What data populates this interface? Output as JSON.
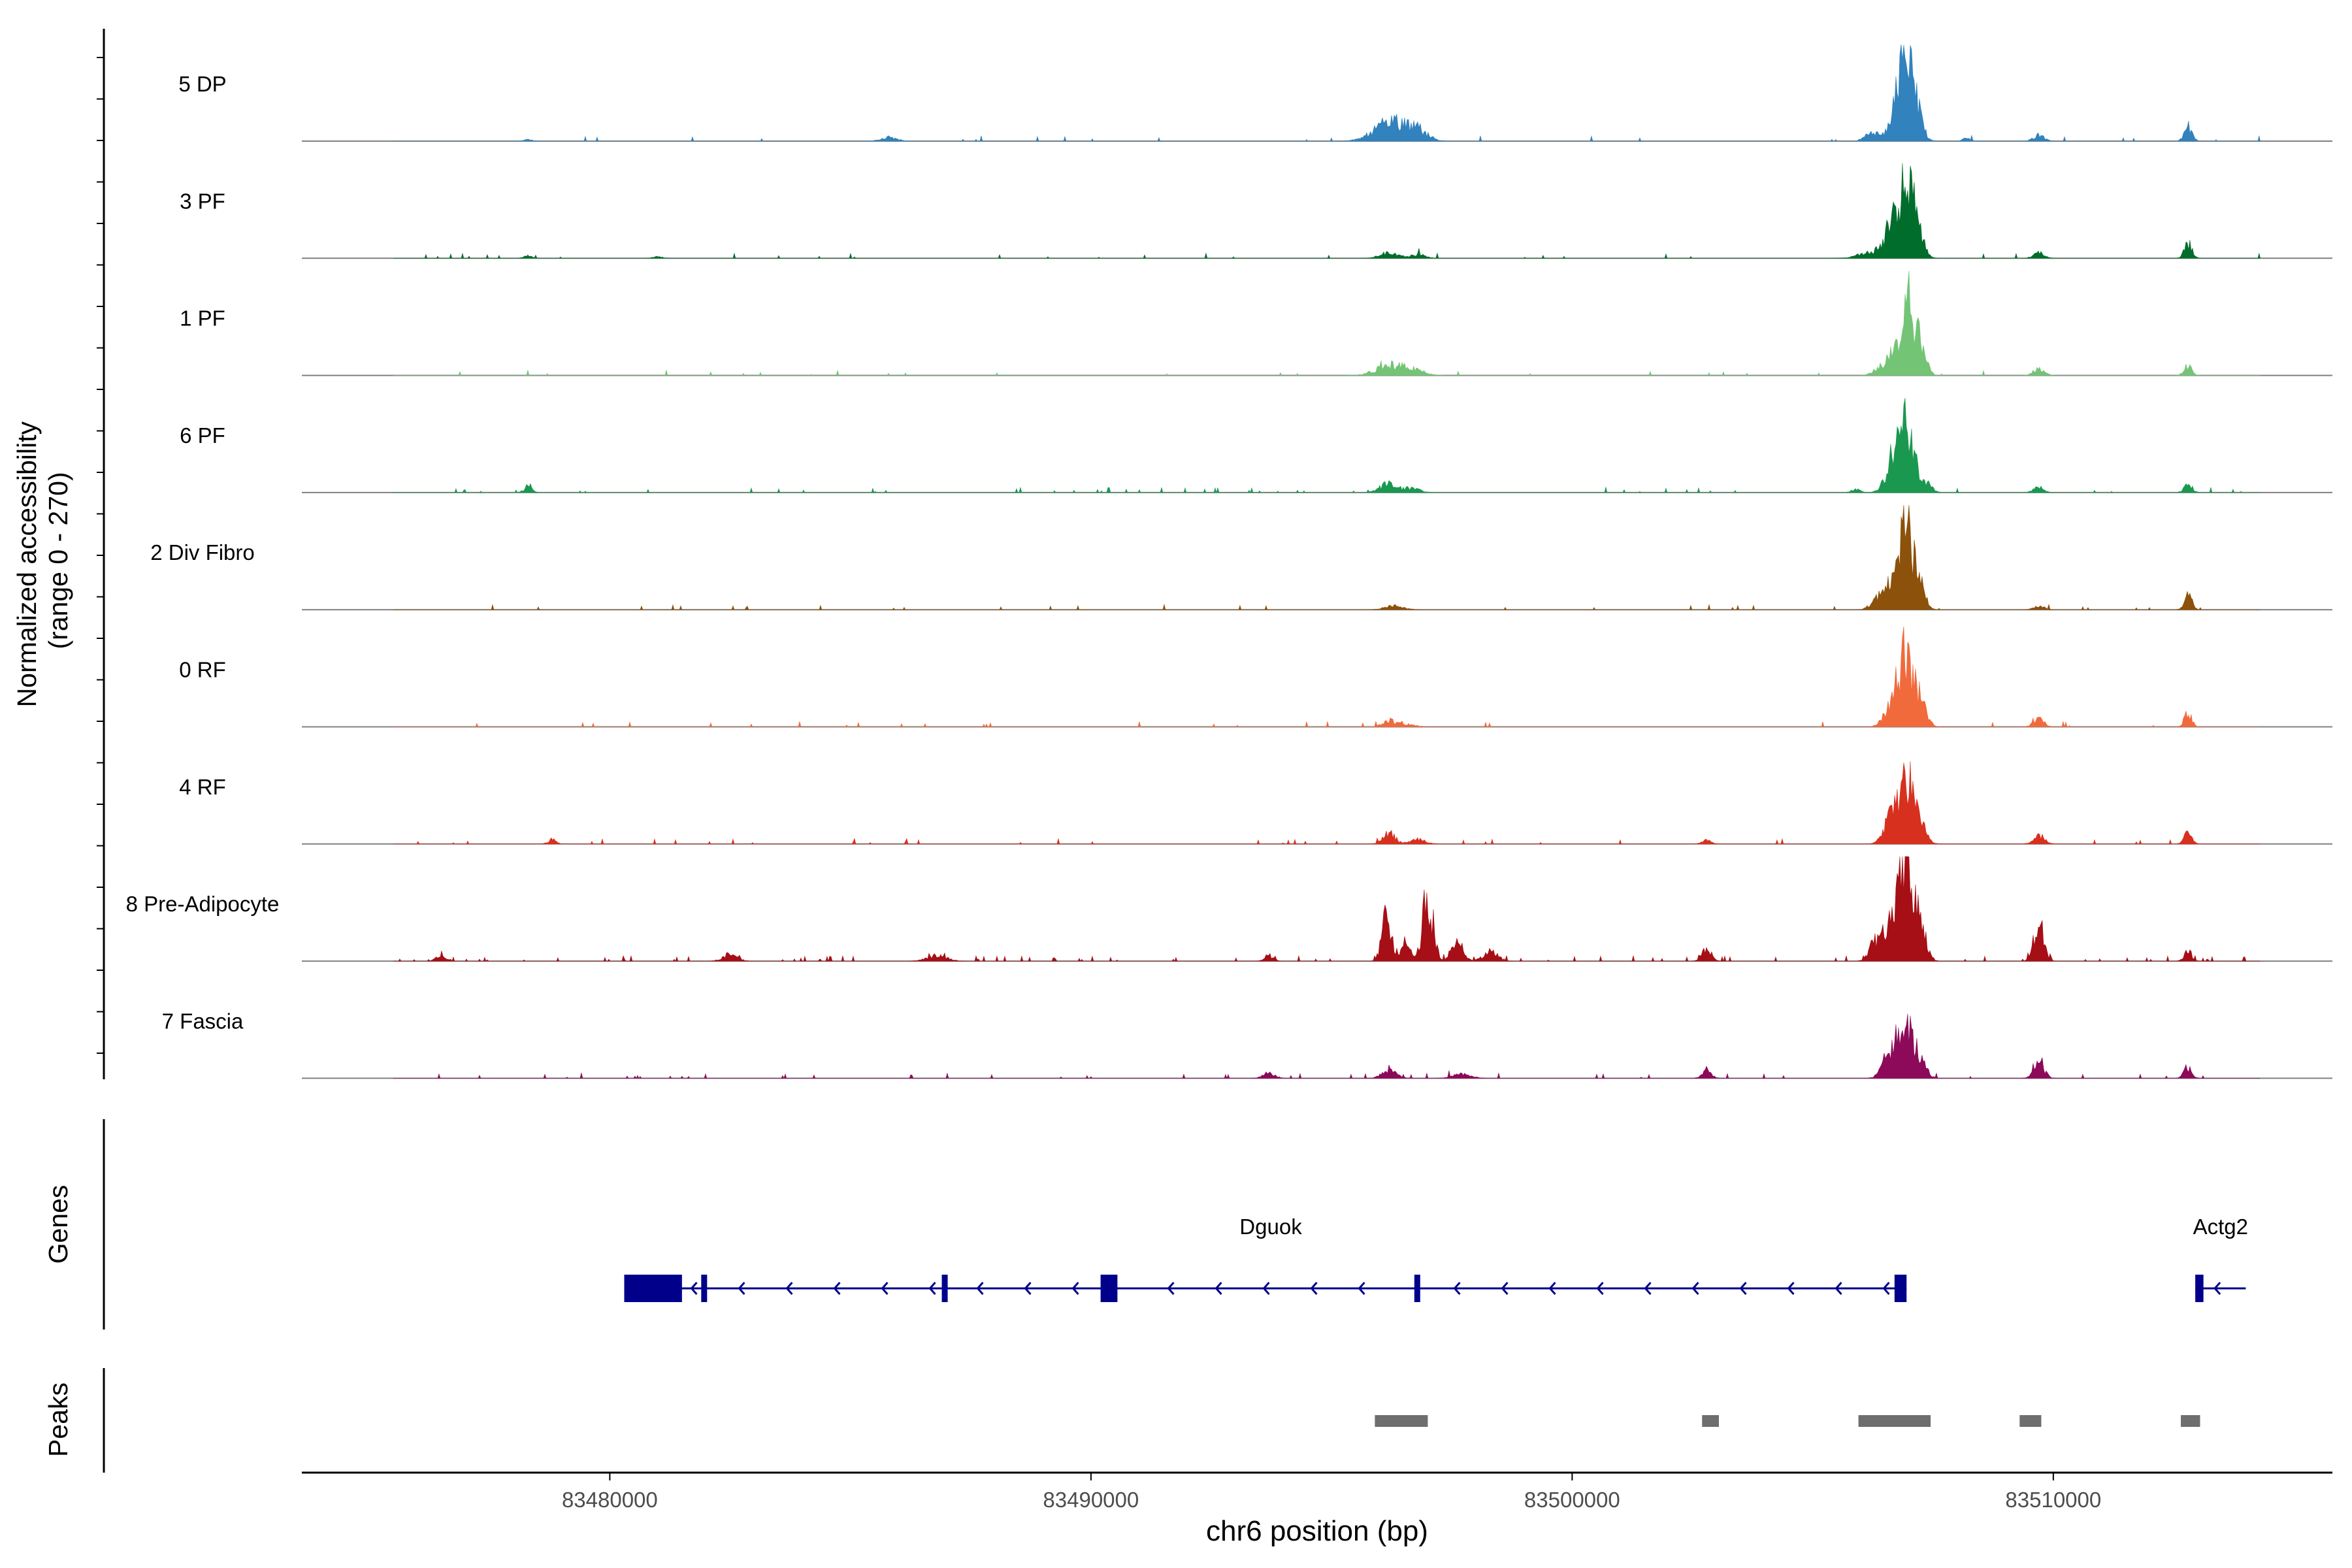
{
  "chart_data": {
    "type": "area",
    "title": "",
    "ylabel": [
      "Normalized accessibility",
      "(range 0 - 270)"
    ],
    "xlabel": "chr6 position (bp)",
    "xlim": [
      83473600,
      83515800
    ],
    "ylim": [
      0,
      270
    ],
    "x_ticks": [
      83480000,
      83490000,
      83500000,
      83510000
    ],
    "x_tick_labels": [
      "83480000",
      "83490000",
      "83500000",
      "83510000"
    ],
    "grid": false,
    "track_range": [
      83475500,
      83514300
    ],
    "tracks": [
      {
        "name": "5 DP",
        "color": "#3182bd",
        "peaks": [
          [
            83478300,
            4,
            80
          ],
          [
            83485800,
            12,
            150
          ],
          [
            83496250,
            52,
            350
          ],
          [
            83496800,
            22,
            200
          ],
          [
            83506200,
            20,
            130
          ],
          [
            83506700,
            50,
            180
          ],
          [
            83506950,
            190,
            160
          ],
          [
            83507200,
            40,
            120
          ],
          [
            83508200,
            8,
            80
          ],
          [
            83509700,
            16,
            110
          ],
          [
            83512800,
            40,
            80
          ]
        ],
        "noise": 0.015
      },
      {
        "name": "3 PF",
        "color": "#006d2c",
        "peaks": [
          [
            83478300,
            8,
            80
          ],
          [
            83481000,
            4,
            100
          ],
          [
            83496200,
            15,
            180
          ],
          [
            83496800,
            10,
            150
          ],
          [
            83506200,
            15,
            250
          ],
          [
            83506650,
            75,
            160
          ],
          [
            83506950,
            180,
            170
          ],
          [
            83507200,
            40,
            120
          ],
          [
            83509700,
            14,
            110
          ],
          [
            83512800,
            40,
            80
          ]
        ],
        "noise": 0.025
      },
      {
        "name": "1 PF",
        "color": "#74c476",
        "peaks": [
          [
            83496250,
            28,
            300
          ],
          [
            83496750,
            12,
            200
          ],
          [
            83506350,
            12,
            130
          ],
          [
            83506650,
            55,
            150
          ],
          [
            83506980,
            200,
            130
          ],
          [
            83507250,
            70,
            110
          ],
          [
            83509700,
            18,
            110
          ],
          [
            83512800,
            25,
            80
          ]
        ],
        "noise": 0.02
      },
      {
        "name": "6 PF",
        "color": "#1a9850",
        "peaks": [
          [
            83478300,
            16,
            80
          ],
          [
            83496200,
            25,
            180
          ],
          [
            83496700,
            10,
            150
          ],
          [
            83505900,
            8,
            100
          ],
          [
            83506700,
            90,
            160
          ],
          [
            83506980,
            155,
            160
          ],
          [
            83507400,
            20,
            100
          ],
          [
            83509700,
            14,
            110
          ],
          [
            83512800,
            25,
            80
          ]
        ],
        "noise": 0.04
      },
      {
        "name": "2 Div Fibro",
        "color": "#8c510a",
        "peaks": [
          [
            83496300,
            10,
            200
          ],
          [
            83506300,
            20,
            120
          ],
          [
            83506650,
            90,
            160
          ],
          [
            83506950,
            220,
            140
          ],
          [
            83507250,
            50,
            110
          ],
          [
            83509700,
            10,
            110
          ],
          [
            83512800,
            40,
            80
          ]
        ],
        "noise": 0.03
      },
      {
        "name": "0 RF",
        "color": "#f16a3c",
        "peaks": [
          [
            83496200,
            18,
            130
          ],
          [
            83496600,
            8,
            150
          ],
          [
            83506650,
            70,
            150
          ],
          [
            83506950,
            185,
            140
          ],
          [
            83507250,
            70,
            120
          ],
          [
            83509700,
            20,
            110
          ],
          [
            83512800,
            35,
            80
          ]
        ],
        "noise": 0.025
      },
      {
        "name": "4 RF",
        "color": "#d7301f",
        "peaks": [
          [
            83478800,
            12,
            80
          ],
          [
            83496200,
            28,
            130
          ],
          [
            83496800,
            12,
            150
          ],
          [
            83502800,
            12,
            90
          ],
          [
            83506650,
            80,
            150
          ],
          [
            83506950,
            175,
            140
          ],
          [
            83507250,
            60,
            120
          ],
          [
            83509700,
            25,
            110
          ],
          [
            83512800,
            28,
            80
          ]
        ],
        "noise": 0.03
      },
      {
        "name": "8 Pre-Adipocyte",
        "color": "#a50f15",
        "peaks": [
          [
            83476500,
            15,
            100
          ],
          [
            83482500,
            18,
            150
          ],
          [
            83486800,
            15,
            200
          ],
          [
            83493700,
            15,
            90
          ],
          [
            83496150,
            120,
            100
          ],
          [
            83496550,
            50,
            100
          ],
          [
            83497000,
            170,
            110
          ],
          [
            83497600,
            50,
            120
          ],
          [
            83498300,
            25,
            150
          ],
          [
            83502800,
            35,
            100
          ],
          [
            83506300,
            50,
            120
          ],
          [
            83506650,
            110,
            150
          ],
          [
            83506950,
            250,
            140
          ],
          [
            83507250,
            80,
            120
          ],
          [
            83509700,
            110,
            100
          ],
          [
            83512800,
            25,
            80
          ]
        ],
        "noise": 0.07
      },
      {
        "name": "7 Fascia",
        "color": "#8c0a59",
        "peaks": [
          [
            83493700,
            14,
            120
          ],
          [
            83496200,
            20,
            150
          ],
          [
            83497700,
            12,
            180
          ],
          [
            83502800,
            18,
            100
          ],
          [
            83506650,
            80,
            160
          ],
          [
            83506950,
            160,
            140
          ],
          [
            83507250,
            40,
            120
          ],
          [
            83509700,
            40,
            110
          ],
          [
            83512800,
            30,
            80
          ]
        ],
        "noise": 0.04
      }
    ],
    "genes": {
      "label": "Genes",
      "color": "#00008b",
      "items": [
        {
          "name": "Dguok",
          "strand": "-",
          "start": 83480300,
          "end": 83506950,
          "exons": [
            [
              83480300,
              83481500
            ],
            [
              83481900,
              83481970
            ],
            [
              83486900,
              83486980
            ],
            [
              83490200,
              83490550
            ],
            [
              83496720,
              83496790
            ],
            [
              83506700,
              83506950
            ]
          ]
        },
        {
          "name": "Actg2",
          "strand": "-",
          "start": 83512950,
          "end": 83514000,
          "exons": [
            [
              83512950,
              83513120
            ]
          ]
        }
      ]
    },
    "peak_regions": {
      "label": "Peaks",
      "color": "#6e6e6e",
      "regions": [
        [
          83495900,
          83497000
        ],
        [
          83502700,
          83503050
        ],
        [
          83505950,
          83507450
        ],
        [
          83509300,
          83509750
        ],
        [
          83512650,
          83513050
        ]
      ]
    }
  }
}
